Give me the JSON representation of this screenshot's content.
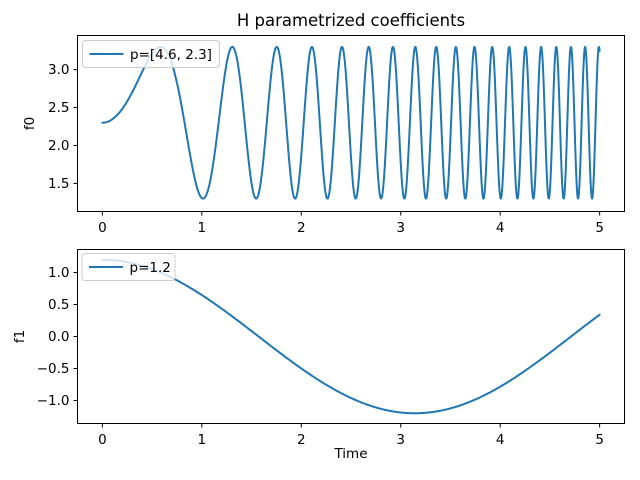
{
  "figure": {
    "title": "H parametrized coefficients",
    "background_color": "#ffffff",
    "line_color": "#1f77b4",
    "spine_color": "#000000",
    "legend_edge_color": "#cccccc"
  },
  "chart_data": [
    {
      "type": "line",
      "subplot": "top",
      "title": "",
      "xlabel": "",
      "ylabel": "f0",
      "xlim": [
        -0.25,
        5.25
      ],
      "ylim": [
        1.13,
        3.45
      ],
      "xticks": [
        0,
        1,
        2,
        3,
        4,
        5
      ],
      "xtick_labels": [
        "0",
        "1",
        "2",
        "3",
        "4",
        "5"
      ],
      "yticks": [
        1.5,
        2.0,
        2.5,
        3.0
      ],
      "ytick_labels": [
        "1.5",
        "2.0",
        "2.5",
        "3.0"
      ],
      "grid": false,
      "legend": {
        "position": "upper left",
        "label": "p=[4.6, 2.3]",
        "color": "#1f77b4"
      },
      "series": [
        {
          "name": "p=[4.6, 2.3]",
          "color": "#1f77b4",
          "equation": "f0(t) = 2.3 + sin(4.6·t²)",
          "fn": "offset_sin_chirp",
          "params": {
            "offset": 2.3,
            "rate": 4.6
          },
          "domain": [
            0,
            5
          ],
          "n_samples": 1600,
          "observed": {
            "y_start": 2.3,
            "y_min": 1.3,
            "y_max": 3.3,
            "behavior": "sinusoid whose frequency increases linearly with t (chirp), phase = 4.6·t²",
            "trough_times": [
              1.01,
              1.55,
              1.94,
              2.26,
              2.55,
              2.8,
              3.04,
              3.25,
              3.46,
              3.65,
              3.83,
              4.01,
              4.17,
              4.33,
              4.49,
              4.64,
              4.78,
              4.92
            ],
            "y_end_at_t5": 3.25
          }
        }
      ]
    },
    {
      "type": "line",
      "subplot": "bottom",
      "title": "",
      "xlabel": "Time",
      "ylabel": "f1",
      "xlim": [
        -0.25,
        5.25
      ],
      "ylim": [
        -1.36,
        1.36
      ],
      "xticks": [
        0,
        1,
        2,
        3,
        4,
        5
      ],
      "xtick_labels": [
        "0",
        "1",
        "2",
        "3",
        "4",
        "5"
      ],
      "yticks": [
        -1.0,
        -0.5,
        0.0,
        0.5,
        1.0
      ],
      "ytick_labels": [
        "−1.0",
        "−0.5",
        "0.0",
        "0.5",
        "1.0"
      ],
      "grid": false,
      "legend": {
        "position": "upper left",
        "label": "p=1.2",
        "color": "#1f77b4"
      },
      "series": [
        {
          "name": "p=1.2",
          "color": "#1f77b4",
          "equation": "f1(t) = 1.2·cos(t)",
          "fn": "amp_cos",
          "params": {
            "amp": 1.2
          },
          "domain": [
            0,
            5
          ],
          "n_samples": 500,
          "observed": {
            "y_start": 1.2,
            "y_min": -1.2,
            "t_at_min": 3.14,
            "y_end_at_t5": 0.34,
            "key_points": [
              {
                "t": 0.0,
                "y": 1.2
              },
              {
                "t": 0.5,
                "y": 1.053
              },
              {
                "t": 1.0,
                "y": 0.648
              },
              {
                "t": 1.5,
                "y": 0.085
              },
              {
                "t": 2.0,
                "y": -0.499
              },
              {
                "t": 2.5,
                "y": -0.961
              },
              {
                "t": 3.0,
                "y": -1.188
              },
              {
                "t": 3.5,
                "y": -1.124
              },
              {
                "t": 4.0,
                "y": -0.784
              },
              {
                "t": 4.5,
                "y": -0.253
              },
              {
                "t": 5.0,
                "y": 0.34
              }
            ]
          }
        }
      ]
    }
  ]
}
